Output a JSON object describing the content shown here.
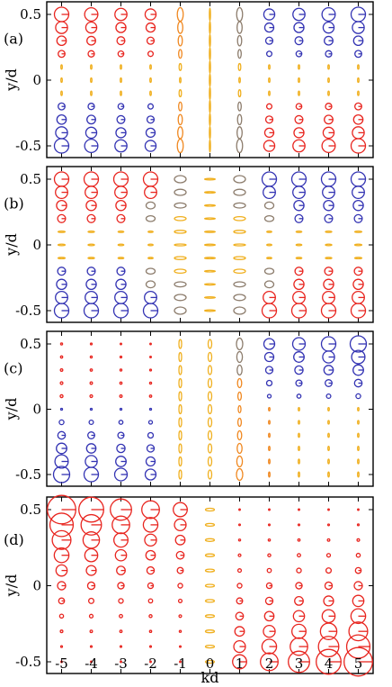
{
  "chart_data": {
    "type": "scatter",
    "description_glyph": "polarization ellipses",
    "xlabel": "kd",
    "ylabel": "y/d",
    "x_ticks": [
      "-5",
      "-4",
      "-3",
      "-2",
      "-1",
      "0",
      "1",
      "2",
      "3",
      "4",
      "5"
    ],
    "y_ticks": [
      "0.5",
      "0",
      "-0.5"
    ],
    "x_values": [
      -5,
      -4,
      -3,
      -2,
      -1,
      0,
      1,
      2,
      3,
      4,
      5
    ],
    "y_values": [
      0.5,
      0.4,
      0.3,
      0.2,
      0.1,
      0.0,
      -0.1,
      -0.2,
      -0.3,
      -0.4,
      -0.5
    ],
    "xlim": [
      -5.5,
      5.5
    ],
    "ylim": [
      -0.58,
      0.58
    ],
    "colors": {
      "right_handed": "#e8251f",
      "left_handed": "#3333b3",
      "linear": "#f0b020",
      "transition": "#8c7c6c",
      "orange": "#f08820"
    },
    "panels": [
      {
        "label": "(a)",
        "pattern": "a"
      },
      {
        "label": "(b)",
        "pattern": "b"
      },
      {
        "label": "(c)",
        "pattern": "c"
      },
      {
        "label": "(d)",
        "pattern": "d"
      }
    ]
  }
}
